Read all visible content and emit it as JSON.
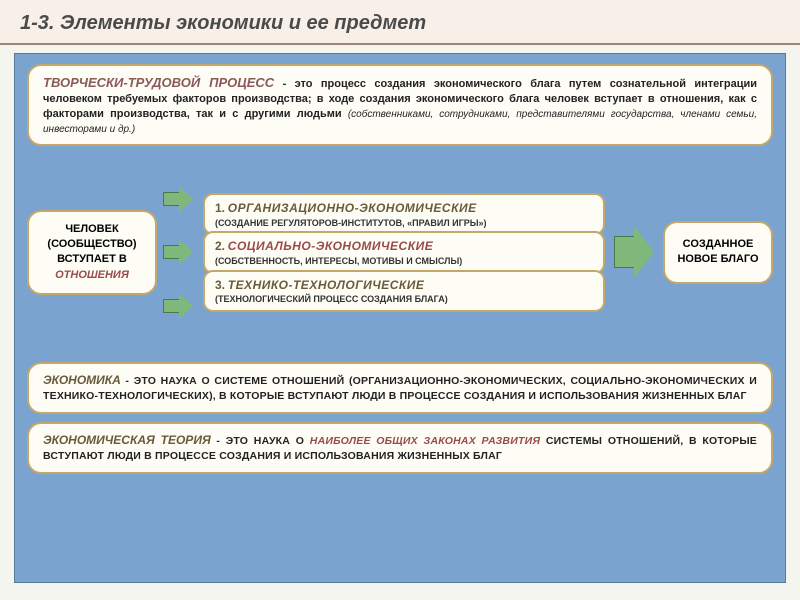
{
  "header": {
    "title": "1-3.  Элементы экономики и ее предмет"
  },
  "colors": {
    "canvas_bg": "#7ba3d0",
    "box_bg": "#fdfcf5",
    "box_border": "#c4a86a",
    "arrow_fill": "#7fb87a",
    "arrow_border": "#4a7a4a",
    "accent_red": "#9a4a4a",
    "accent_olive": "#6a5a3a",
    "header_bg": "#f8f0e8",
    "header_rule": "#a0847a"
  },
  "top": {
    "lead": "ТВОРЧЕСКИ-ТРУДОВОЙ ПРОЦЕСС",
    "body": " - это процесс создания экономического блага путем сознательной интеграции человеком требуемых факторов производства; в ходе создания экономического блага человек вступает в отношения, как с факторами производства, так и с другими людьми ",
    "paren": "(собственниками, сотрудниками, представителями государства, членами семьи, инвесторами и др.)"
  },
  "left": {
    "l1": "ЧЕЛОВЕК (СООБЩЕСТВО) ВСТУПАЕТ В ",
    "red": "ОТНОШЕНИЯ"
  },
  "center": {
    "items": [
      {
        "num": "1.",
        "title": "ОРГАНИЗАЦИОННО-ЭКОНОМИЧЕСКИЕ",
        "title_color": "olive",
        "sub": "(СОЗДАНИЕ РЕГУЛЯТОРОВ-ИНСТИТУТОВ, «ПРАВИЛ ИГРЫ»)"
      },
      {
        "num": "2.",
        "title": "СОЦИАЛЬНО-ЭКОНОМИЧЕСКИЕ",
        "title_color": "red",
        "sub": "(СОБСТВЕННОСТЬ, ИНТЕРЕСЫ, МОТИВЫ И СМЫСЛЫ)"
      },
      {
        "num": "3.",
        "title": "ТЕХНИКО-ТЕХНОЛОГИЧЕСКИЕ",
        "title_color": "olive",
        "sub": "(ТЕХНОЛОГИЧЕСКИЙ ПРОЦЕСС СОЗДАНИЯ БЛАГА)"
      }
    ]
  },
  "right": {
    "text": "СОЗДАННОЕ НОВОЕ БЛАГО"
  },
  "def1": {
    "lead": "ЭКОНОМИКА",
    "body": " - ЭТО НАУКА О СИСТЕМЕ ОТНОШЕНИЙ (ОРГАНИЗАЦИОННО-ЭКОНОМИЧЕСКИХ, СОЦИАЛЬНО-ЭКОНОМИЧЕСКИХ И ТЕХНИКО-ТЕХНОЛОГИЧЕСКИХ), В КОТОРЫЕ ВСТУПАЮТ ЛЮДИ В ПРОЦЕССЕ СОЗДАНИЯ И ИСПОЛЬЗОВАНИЯ ЖИЗНЕННЫХ БЛАГ"
  },
  "def2": {
    "lead": "ЭКОНОМИЧЕСКАЯ ТЕОРИЯ",
    "body1": " - ЭТО НАУКА О ",
    "red": "НАИБОЛЕЕ ОБЩИХ ЗАКОНАХ РАЗВИТИЯ",
    "body2": " СИСТЕМЫ ОТНОШЕНИЙ, В КОТОРЫЕ ВСТУПАЮТ ЛЮДИ В ПРОЦЕССЕ СОЗДАНИЯ И ИСПОЛЬЗОВАНИЯ ЖИЗНЕННЫХ БЛАГ"
  }
}
